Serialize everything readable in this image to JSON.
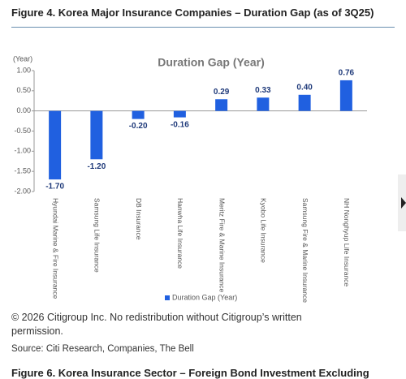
{
  "figure_title": "Figure 4. Korea Major Insurance Companies – Duration Gap (as of 3Q25)",
  "chart_data": {
    "type": "bar",
    "title": "Duration Gap (Year)",
    "y_label": "(Year)",
    "categories": [
      "Hyundai Marine & Fire Insurance",
      "Samsung Life Insurance",
      "DB Insurance",
      "Hanwha Life Insurance",
      "Meritz Fire & Marine Insurance",
      "Kyobo Life Insurance",
      "Samsung Fire & Marine Insurance",
      "NH Nonghyup Life Insurance"
    ],
    "series": [
      {
        "name": "Duration Gap (Year)",
        "color": "#2060e0",
        "values": [
          -1.7,
          -1.2,
          -0.2,
          -0.16,
          0.29,
          0.33,
          0.4,
          0.76
        ],
        "value_labels": [
          "-1.70",
          "-1.20",
          "-0.20",
          "-0.16",
          "0.29",
          "0.33",
          "0.40",
          "0.76"
        ]
      }
    ],
    "ylim": [
      -2,
      1
    ],
    "yticks": [
      {
        "value": 1,
        "label": "1.00"
      },
      {
        "value": 0.5,
        "label": "0.50"
      },
      {
        "value": 0,
        "label": "0.00"
      },
      {
        "value": -0.5,
        "label": "-0.50"
      },
      {
        "value": -1,
        "label": "-1.00"
      },
      {
        "value": -1.5,
        "label": "-1.50"
      },
      {
        "value": -2,
        "label": "-2.00"
      }
    ],
    "legend": "bottom"
  },
  "copyright": "© 2026 Citigroup Inc. No redistribution without Citigroup’s written permission.",
  "source": "Source: Citi Research, Companies, The Bell",
  "next_title": "Figure 6. Korea Insurance Sector – Foreign Bond Investment Excluding"
}
